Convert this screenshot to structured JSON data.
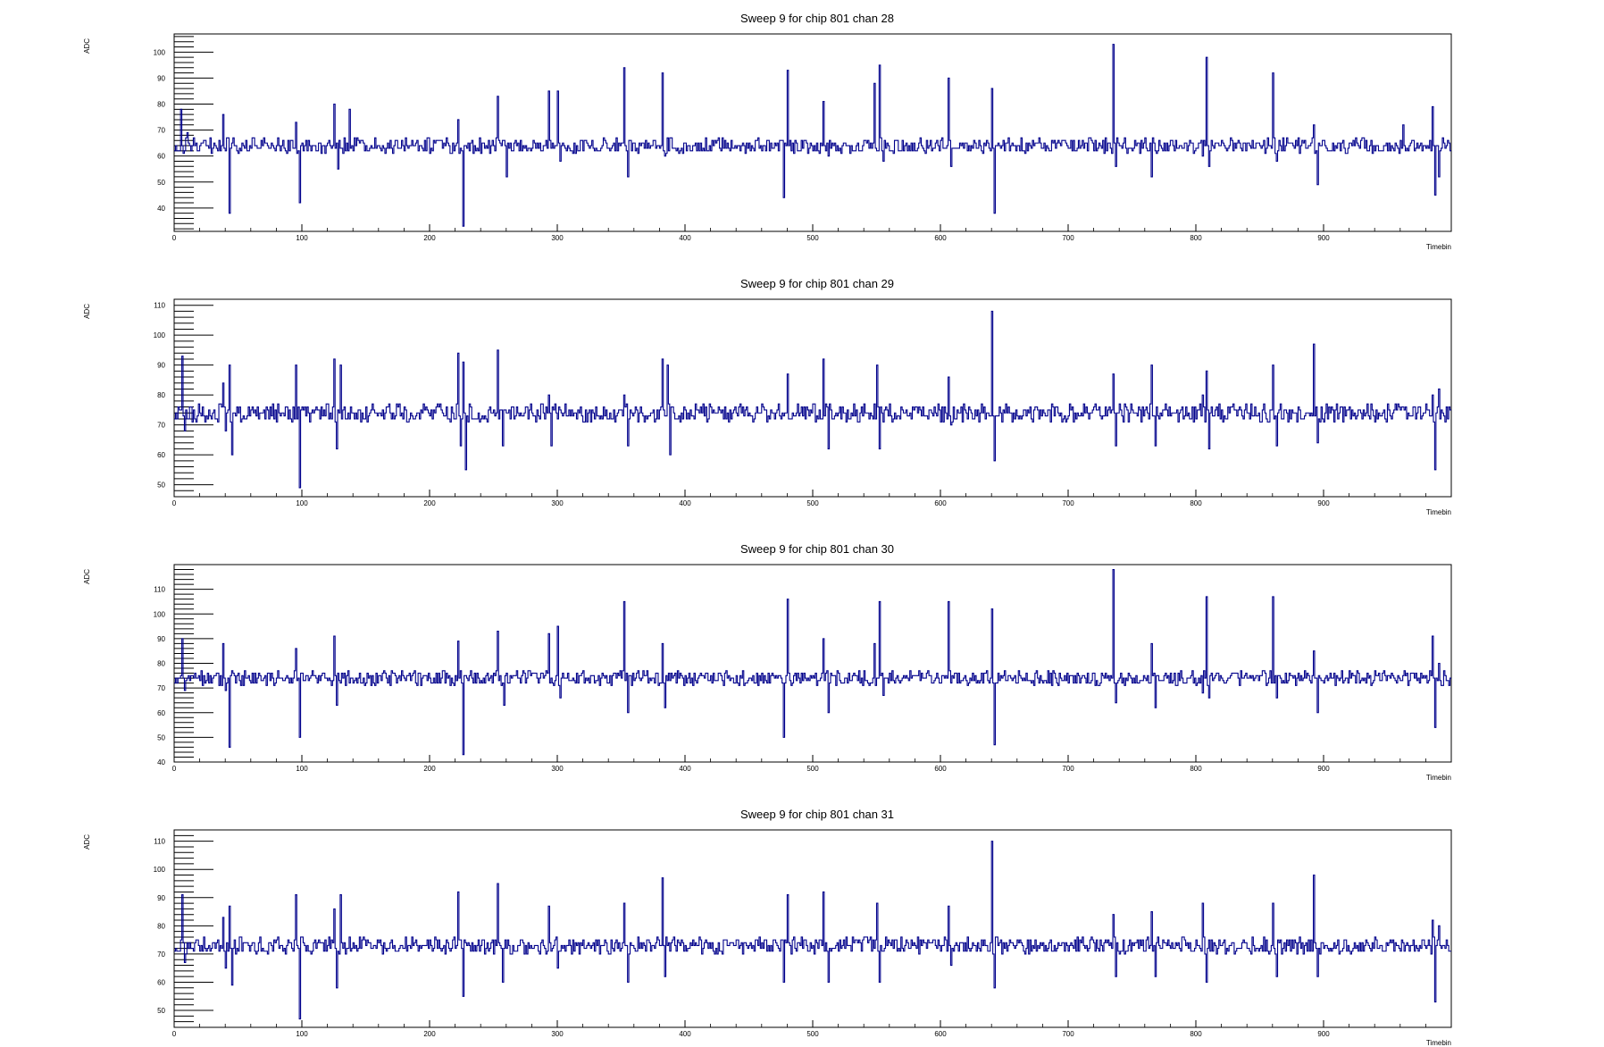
{
  "colors": {
    "series": "#00008b",
    "axis": "#000000",
    "background": "#ffffff"
  },
  "chart_data": [
    {
      "type": "line",
      "style": "step",
      "title": "Sweep 9 for chip 801 chan 28",
      "xlabel": "Timebin",
      "ylabel": "ADC",
      "xlim": [
        0,
        1000
      ],
      "ylim": [
        31,
        107
      ],
      "baseline": 64,
      "xticks": [
        0,
        100,
        200,
        300,
        400,
        500,
        600,
        700,
        800,
        900
      ],
      "yticks": [
        40,
        50,
        60,
        70,
        80,
        90,
        100
      ],
      "spikes": [
        [
          5,
          78
        ],
        [
          7,
          61
        ],
        [
          10,
          69
        ],
        [
          38,
          76
        ],
        [
          43,
          38
        ],
        [
          95,
          73
        ],
        [
          98,
          42
        ],
        [
          125,
          80
        ],
        [
          128,
          55
        ],
        [
          137,
          78
        ],
        [
          222,
          74
        ],
        [
          226,
          33
        ],
        [
          253,
          83
        ],
        [
          260,
          52
        ],
        [
          293,
          85
        ],
        [
          300,
          85
        ],
        [
          302,
          58
        ],
        [
          352,
          94
        ],
        [
          355,
          52
        ],
        [
          382,
          92
        ],
        [
          384,
          60
        ],
        [
          477,
          44
        ],
        [
          480,
          93
        ],
        [
          508,
          81
        ],
        [
          512,
          60
        ],
        [
          548,
          88
        ],
        [
          552,
          95
        ],
        [
          555,
          58
        ],
        [
          606,
          90
        ],
        [
          608,
          56
        ],
        [
          640,
          86
        ],
        [
          642,
          38
        ],
        [
          735,
          103
        ],
        [
          737,
          56
        ],
        [
          763,
          62
        ],
        [
          765,
          52
        ],
        [
          805,
          60
        ],
        [
          808,
          98
        ],
        [
          810,
          56
        ],
        [
          860,
          92
        ],
        [
          863,
          58
        ],
        [
          892,
          72
        ],
        [
          895,
          49
        ],
        [
          962,
          72
        ],
        [
          985,
          79
        ],
        [
          987,
          45
        ],
        [
          990,
          52
        ]
      ]
    },
    {
      "type": "line",
      "style": "step",
      "title": "Sweep 9 for chip 801 chan 29",
      "xlabel": "Timebin",
      "ylabel": "ADC",
      "xlim": [
        0,
        1000
      ],
      "ylim": [
        46,
        112
      ],
      "baseline": 74,
      "xticks": [
        0,
        100,
        200,
        300,
        400,
        500,
        600,
        700,
        800,
        900
      ],
      "yticks": [
        50,
        60,
        70,
        80,
        90,
        100,
        110
      ],
      "spikes": [
        [
          6,
          93
        ],
        [
          8,
          68
        ],
        [
          38,
          84
        ],
        [
          40,
          68
        ],
        [
          43,
          90
        ],
        [
          45,
          60
        ],
        [
          95,
          90
        ],
        [
          98,
          49
        ],
        [
          125,
          92
        ],
        [
          127,
          62
        ],
        [
          130,
          90
        ],
        [
          222,
          94
        ],
        [
          224,
          63
        ],
        [
          226,
          91
        ],
        [
          228,
          55
        ],
        [
          253,
          95
        ],
        [
          257,
          63
        ],
        [
          293,
          80
        ],
        [
          295,
          63
        ],
        [
          352,
          80
        ],
        [
          355,
          63
        ],
        [
          382,
          92
        ],
        [
          384,
          73
        ],
        [
          386,
          90
        ],
        [
          388,
          60
        ],
        [
          477,
          73
        ],
        [
          480,
          87
        ],
        [
          508,
          92
        ],
        [
          512,
          62
        ],
        [
          550,
          90
        ],
        [
          552,
          62
        ],
        [
          606,
          86
        ],
        [
          608,
          70
        ],
        [
          640,
          108
        ],
        [
          642,
          58
        ],
        [
          735,
          87
        ],
        [
          737,
          63
        ],
        [
          765,
          90
        ],
        [
          768,
          63
        ],
        [
          805,
          80
        ],
        [
          808,
          88
        ],
        [
          810,
          62
        ],
        [
          860,
          90
        ],
        [
          863,
          63
        ],
        [
          892,
          97
        ],
        [
          895,
          64
        ],
        [
          985,
          80
        ],
        [
          987,
          55
        ],
        [
          990,
          82
        ]
      ]
    },
    {
      "type": "line",
      "style": "step",
      "title": "Sweep 9 for chip 801 chan 30",
      "xlabel": "Timebin",
      "ylabel": "ADC",
      "xlim": [
        0,
        1000
      ],
      "ylim": [
        40,
        120
      ],
      "baseline": 74,
      "xticks": [
        0,
        100,
        200,
        300,
        400,
        500,
        600,
        700,
        800,
        900
      ],
      "yticks": [
        40,
        50,
        60,
        70,
        80,
        90,
        100,
        110
      ],
      "spikes": [
        [
          6,
          90
        ],
        [
          8,
          69
        ],
        [
          38,
          88
        ],
        [
          40,
          69
        ],
        [
          43,
          46
        ],
        [
          95,
          86
        ],
        [
          98,
          50
        ],
        [
          125,
          91
        ],
        [
          127,
          63
        ],
        [
          222,
          89
        ],
        [
          226,
          43
        ],
        [
          253,
          93
        ],
        [
          258,
          63
        ],
        [
          293,
          92
        ],
        [
          300,
          95
        ],
        [
          302,
          66
        ],
        [
          352,
          105
        ],
        [
          355,
          60
        ],
        [
          382,
          88
        ],
        [
          384,
          62
        ],
        [
          477,
          50
        ],
        [
          480,
          106
        ],
        [
          508,
          90
        ],
        [
          512,
          60
        ],
        [
          548,
          88
        ],
        [
          552,
          105
        ],
        [
          555,
          67
        ],
        [
          606,
          105
        ],
        [
          608,
          72
        ],
        [
          640,
          102
        ],
        [
          642,
          47
        ],
        [
          735,
          118
        ],
        [
          737,
          64
        ],
        [
          765,
          88
        ],
        [
          768,
          62
        ],
        [
          805,
          68
        ],
        [
          808,
          107
        ],
        [
          810,
          66
        ],
        [
          860,
          107
        ],
        [
          863,
          66
        ],
        [
          892,
          85
        ],
        [
          895,
          60
        ],
        [
          985,
          91
        ],
        [
          987,
          54
        ],
        [
          990,
          80
        ]
      ]
    },
    {
      "type": "line",
      "style": "step",
      "title": "Sweep 9 for chip 801 chan 31",
      "xlabel": "Timebin",
      "ylabel": "ADC",
      "xlim": [
        0,
        1000
      ],
      "ylim": [
        44,
        114
      ],
      "baseline": 73,
      "xticks": [
        0,
        100,
        200,
        300,
        400,
        500,
        600,
        700,
        800,
        900
      ],
      "yticks": [
        50,
        60,
        70,
        80,
        90,
        100,
        110
      ],
      "spikes": [
        [
          6,
          91
        ],
        [
          8,
          67
        ],
        [
          38,
          83
        ],
        [
          40,
          65
        ],
        [
          43,
          87
        ],
        [
          45,
          59
        ],
        [
          95,
          91
        ],
        [
          98,
          47
        ],
        [
          125,
          86
        ],
        [
          127,
          58
        ],
        [
          130,
          91
        ],
        [
          222,
          92
        ],
        [
          226,
          55
        ],
        [
          253,
          95
        ],
        [
          257,
          60
        ],
        [
          293,
          87
        ],
        [
          300,
          65
        ],
        [
          352,
          88
        ],
        [
          355,
          60
        ],
        [
          382,
          97
        ],
        [
          384,
          62
        ],
        [
          477,
          60
        ],
        [
          480,
          91
        ],
        [
          508,
          92
        ],
        [
          512,
          60
        ],
        [
          550,
          88
        ],
        [
          552,
          60
        ],
        [
          606,
          87
        ],
        [
          608,
          66
        ],
        [
          640,
          110
        ],
        [
          642,
          58
        ],
        [
          735,
          84
        ],
        [
          737,
          62
        ],
        [
          765,
          85
        ],
        [
          768,
          62
        ],
        [
          805,
          88
        ],
        [
          808,
          60
        ],
        [
          860,
          88
        ],
        [
          863,
          62
        ],
        [
          892,
          98
        ],
        [
          895,
          62
        ],
        [
          985,
          82
        ],
        [
          987,
          53
        ],
        [
          990,
          80
        ]
      ]
    }
  ]
}
